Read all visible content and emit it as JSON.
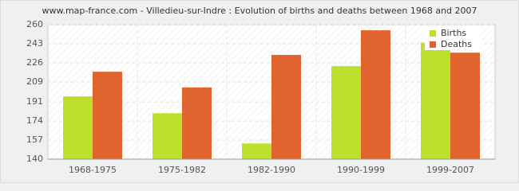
{
  "chart_data": {
    "type": "bar",
    "title": "www.map-france.com - Villedieu-sur-Indre : Evolution of births and deaths between 1968 and 2007",
    "categories": [
      "1968-1975",
      "1975-1982",
      "1982-1990",
      "1990-1999",
      "1999-2007"
    ],
    "series": [
      {
        "name": "Births",
        "color": "#bce02c",
        "values": [
          196,
          181,
          154,
          223,
          244
        ]
      },
      {
        "name": "Deaths",
        "color": "#e0642e",
        "values": [
          218,
          204,
          233,
          255,
          235
        ]
      }
    ],
    "ylim": [
      140,
      260
    ],
    "yticks": [
      140,
      157,
      174,
      191,
      209,
      226,
      243,
      260
    ],
    "grid": true,
    "legend": "top-right"
  }
}
